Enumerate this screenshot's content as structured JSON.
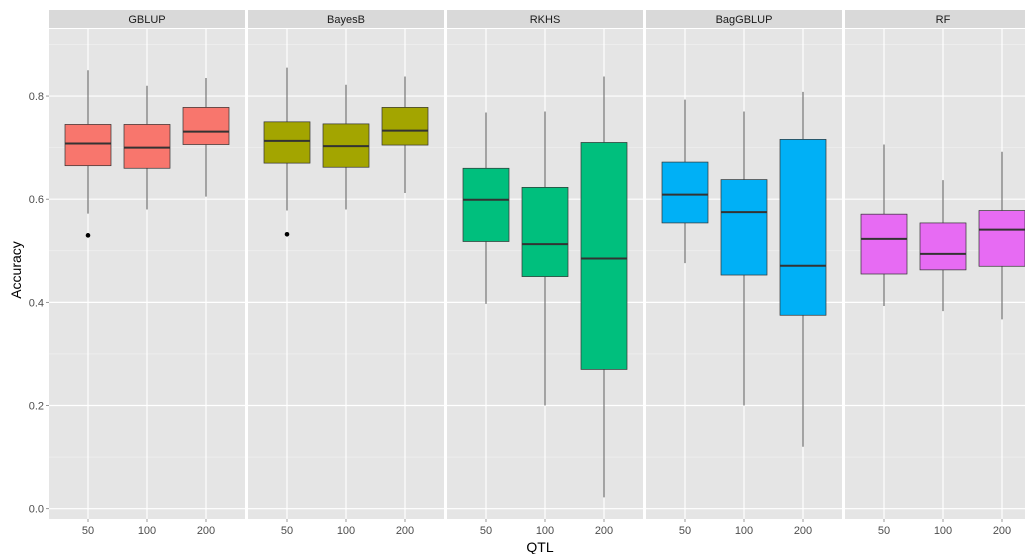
{
  "chart_data": {
    "type": "box",
    "xlabel": "QTL",
    "ylabel": "Accuracy",
    "ylim": [
      -0.02,
      0.93
    ],
    "y_ticks": [
      "0.0",
      "0.2",
      "0.4",
      "0.6",
      "0.8"
    ],
    "y_tick_values": [
      0.0,
      0.2,
      0.4,
      0.6,
      0.8
    ],
    "categories": [
      "50",
      "100",
      "200"
    ],
    "grid": true,
    "legend": "none",
    "panels": [
      {
        "label": "GBLUP",
        "color": "#F8766D",
        "boxes": [
          {
            "category": "50",
            "min": 0.572,
            "q1": 0.665,
            "median": 0.708,
            "q3": 0.745,
            "max": 0.85,
            "outliers": [
              0.53
            ]
          },
          {
            "category": "100",
            "min": 0.58,
            "q1": 0.66,
            "median": 0.7,
            "q3": 0.745,
            "max": 0.82,
            "outliers": []
          },
          {
            "category": "200",
            "min": 0.605,
            "q1": 0.706,
            "median": 0.731,
            "q3": 0.778,
            "max": 0.835,
            "outliers": []
          }
        ]
      },
      {
        "label": "BayesB",
        "color": "#A3A500",
        "boxes": [
          {
            "category": "50",
            "min": 0.578,
            "q1": 0.67,
            "median": 0.713,
            "q3": 0.75,
            "max": 0.855,
            "outliers": [
              0.532
            ]
          },
          {
            "category": "100",
            "min": 0.58,
            "q1": 0.662,
            "median": 0.703,
            "q3": 0.746,
            "max": 0.822,
            "outliers": []
          },
          {
            "category": "200",
            "min": 0.612,
            "q1": 0.705,
            "median": 0.733,
            "q3": 0.778,
            "max": 0.838,
            "outliers": []
          }
        ]
      },
      {
        "label": "RKHS",
        "color": "#00BF7D",
        "boxes": [
          {
            "category": "50",
            "min": 0.397,
            "q1": 0.518,
            "median": 0.599,
            "q3": 0.66,
            "max": 0.768,
            "outliers": []
          },
          {
            "category": "100",
            "min": 0.2,
            "q1": 0.45,
            "median": 0.513,
            "q3": 0.623,
            "max": 0.77,
            "outliers": []
          },
          {
            "category": "200",
            "min": 0.022,
            "q1": 0.27,
            "median": 0.485,
            "q3": 0.71,
            "max": 0.838,
            "outliers": []
          }
        ]
      },
      {
        "label": "BagGBLUP",
        "color": "#00B0F6",
        "boxes": [
          {
            "category": "50",
            "min": 0.476,
            "q1": 0.554,
            "median": 0.609,
            "q3": 0.672,
            "max": 0.793,
            "outliers": []
          },
          {
            "category": "100",
            "min": 0.2,
            "q1": 0.453,
            "median": 0.575,
            "q3": 0.638,
            "max": 0.77,
            "outliers": []
          },
          {
            "category": "200",
            "min": 0.12,
            "q1": 0.375,
            "median": 0.471,
            "q3": 0.716,
            "max": 0.808,
            "outliers": []
          }
        ]
      },
      {
        "label": "RF",
        "color": "#E76BF3",
        "boxes": [
          {
            "category": "50",
            "min": 0.393,
            "q1": 0.455,
            "median": 0.523,
            "q3": 0.571,
            "max": 0.706,
            "outliers": []
          },
          {
            "category": "100",
            "min": 0.383,
            "q1": 0.463,
            "median": 0.494,
            "q3": 0.554,
            "max": 0.637,
            "outliers": []
          },
          {
            "category": "200",
            "min": 0.367,
            "q1": 0.47,
            "median": 0.541,
            "q3": 0.578,
            "max": 0.692,
            "outliers": []
          }
        ]
      }
    ]
  }
}
